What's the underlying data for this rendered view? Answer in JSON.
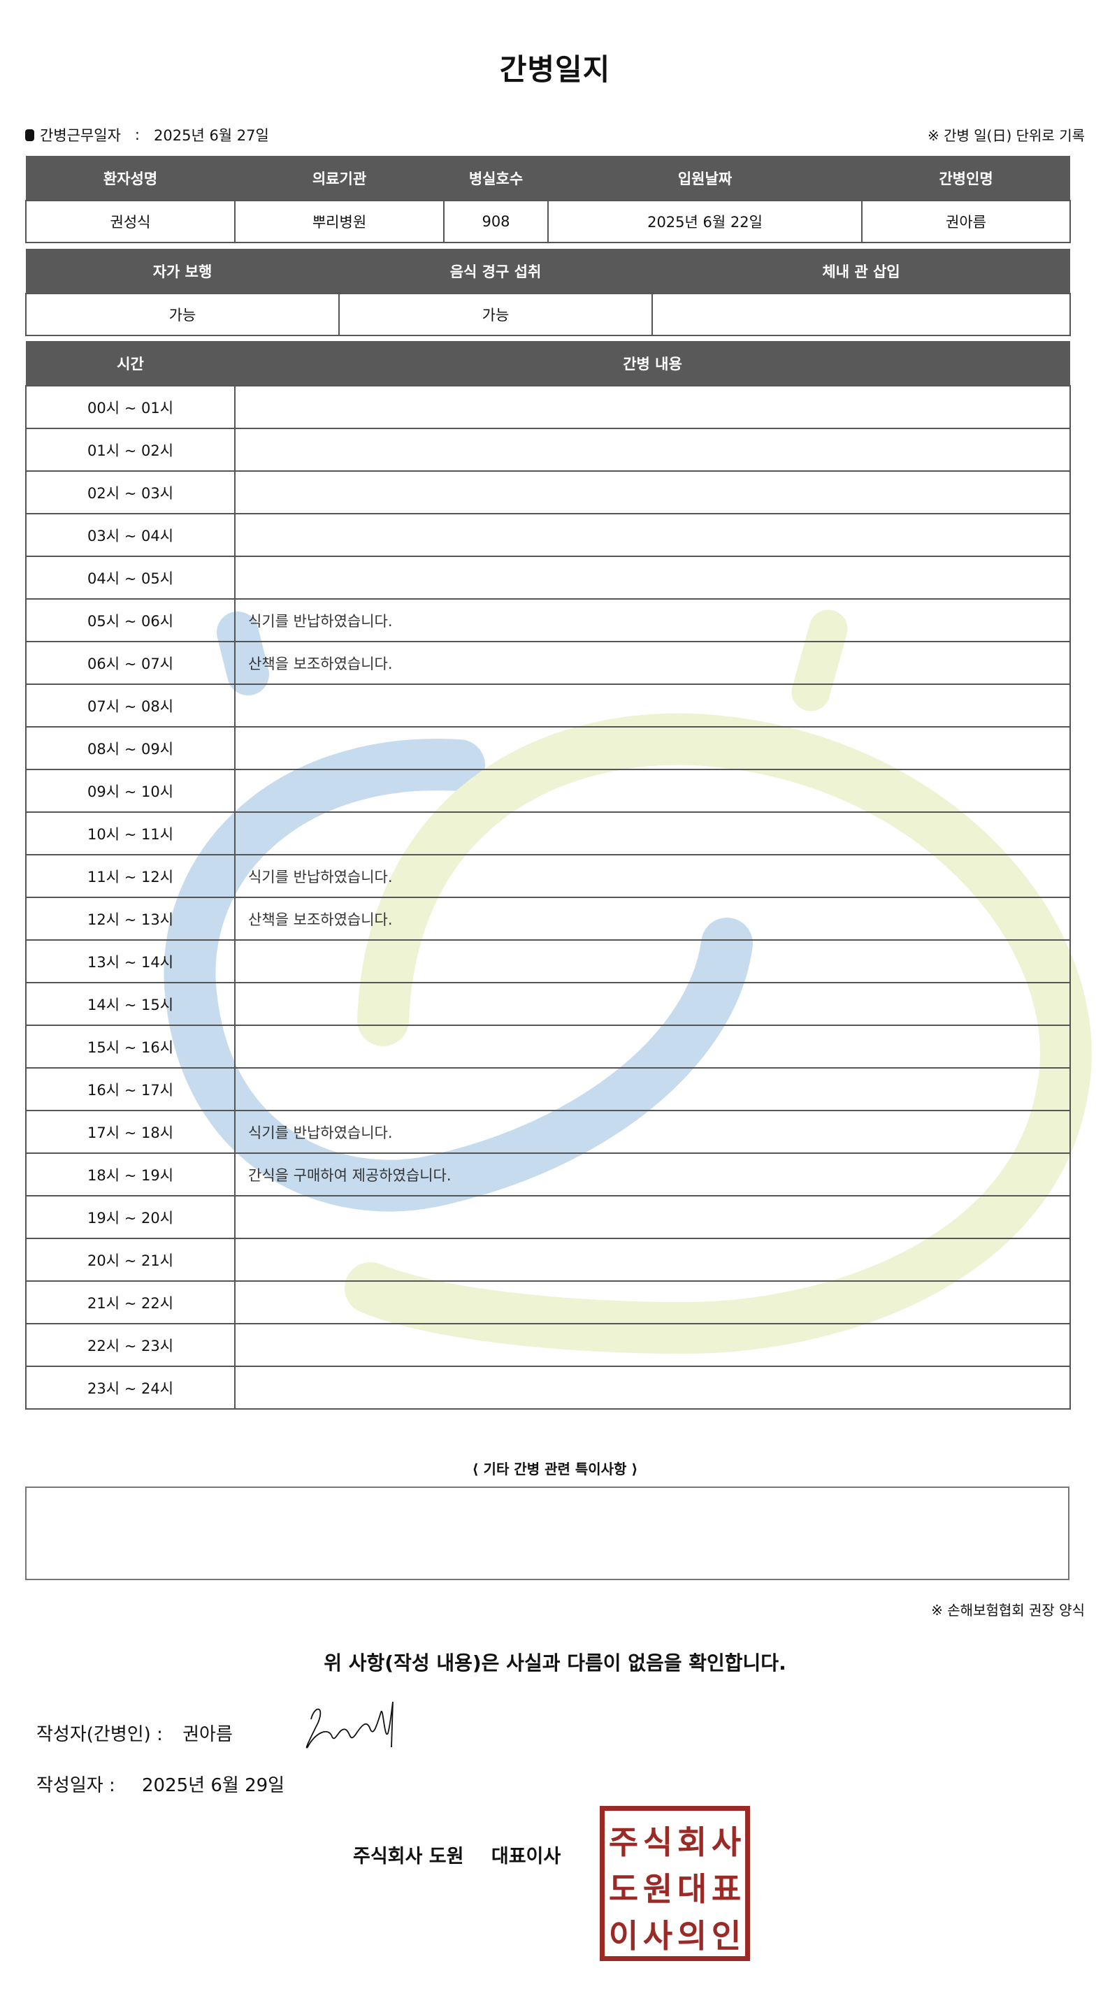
{
  "title": "간병일지",
  "work_date": {
    "label": "간병근무일자",
    "separator": ":",
    "value": "2025년 6월 27일"
  },
  "record_note": "※ 간병 일(日) 단위로 기록",
  "patient_table": {
    "headers": [
      "환자성명",
      "의료기관",
      "병실호수",
      "입원날짜",
      "간병인명"
    ],
    "values": [
      "권성식",
      "뿌리병원",
      "908",
      "2025년 6월 22일",
      "권아름"
    ]
  },
  "status_table": {
    "headers": [
      "자가 보행",
      "음식 경구 섭취",
      "체내 관 삽입"
    ],
    "values": [
      "가능",
      "가능",
      ""
    ]
  },
  "log_table": {
    "headers": [
      "시간",
      "간병 내용"
    ],
    "rows": [
      {
        "time": "00시 ~ 01시",
        "content": ""
      },
      {
        "time": "01시 ~ 02시",
        "content": ""
      },
      {
        "time": "02시 ~ 03시",
        "content": ""
      },
      {
        "time": "03시 ~ 04시",
        "content": ""
      },
      {
        "time": "04시 ~ 05시",
        "content": ""
      },
      {
        "time": "05시 ~ 06시",
        "content": "식기를 반납하였습니다."
      },
      {
        "time": "06시 ~ 07시",
        "content": "산책을 보조하였습니다."
      },
      {
        "time": "07시 ~ 08시",
        "content": ""
      },
      {
        "time": "08시 ~ 09시",
        "content": ""
      },
      {
        "time": "09시 ~ 10시",
        "content": ""
      },
      {
        "time": "10시 ~ 11시",
        "content": ""
      },
      {
        "time": "11시 ~ 12시",
        "content": "식기를 반납하였습니다."
      },
      {
        "time": "12시 ~ 13시",
        "content": "산책을 보조하였습니다."
      },
      {
        "time": "13시 ~ 14시",
        "content": ""
      },
      {
        "time": "14시 ~ 15시",
        "content": ""
      },
      {
        "time": "15시 ~ 16시",
        "content": ""
      },
      {
        "time": "16시 ~ 17시",
        "content": ""
      },
      {
        "time": "17시 ~ 18시",
        "content": "식기를 반납하였습니다."
      },
      {
        "time": "18시 ~ 19시",
        "content": "간식을 구매하여 제공하였습니다."
      },
      {
        "time": "19시 ~ 20시",
        "content": ""
      },
      {
        "time": "20시 ~ 21시",
        "content": ""
      },
      {
        "time": "21시 ~ 22시",
        "content": ""
      },
      {
        "time": "22시 ~ 23시",
        "content": ""
      },
      {
        "time": "23시 ~ 24시",
        "content": ""
      }
    ]
  },
  "remarks": {
    "title": "⟨ 기타 간병 관련 특이사항 ⟩",
    "value": ""
  },
  "form_note": "※ 손해보험협회 권장 양식",
  "confirmation": "위 사항(작성 내용)은 사실과 다름이 없음을 확인합니다.",
  "writer": {
    "label": "작성자(간병인) :",
    "name": "권아름"
  },
  "written_date": {
    "label": "작성일자 :",
    "value": "2025년 6월 29일"
  },
  "company": {
    "name": "주식회사 도원",
    "title": "대표이사"
  },
  "seal": {
    "text": [
      "주식회사",
      "도원대표",
      "이사의인"
    ],
    "color": "#9b2a26"
  },
  "colors": {
    "header_bg": "#595959",
    "watermark_blue": "#c6dcee",
    "watermark_green": "#eef3d4"
  }
}
